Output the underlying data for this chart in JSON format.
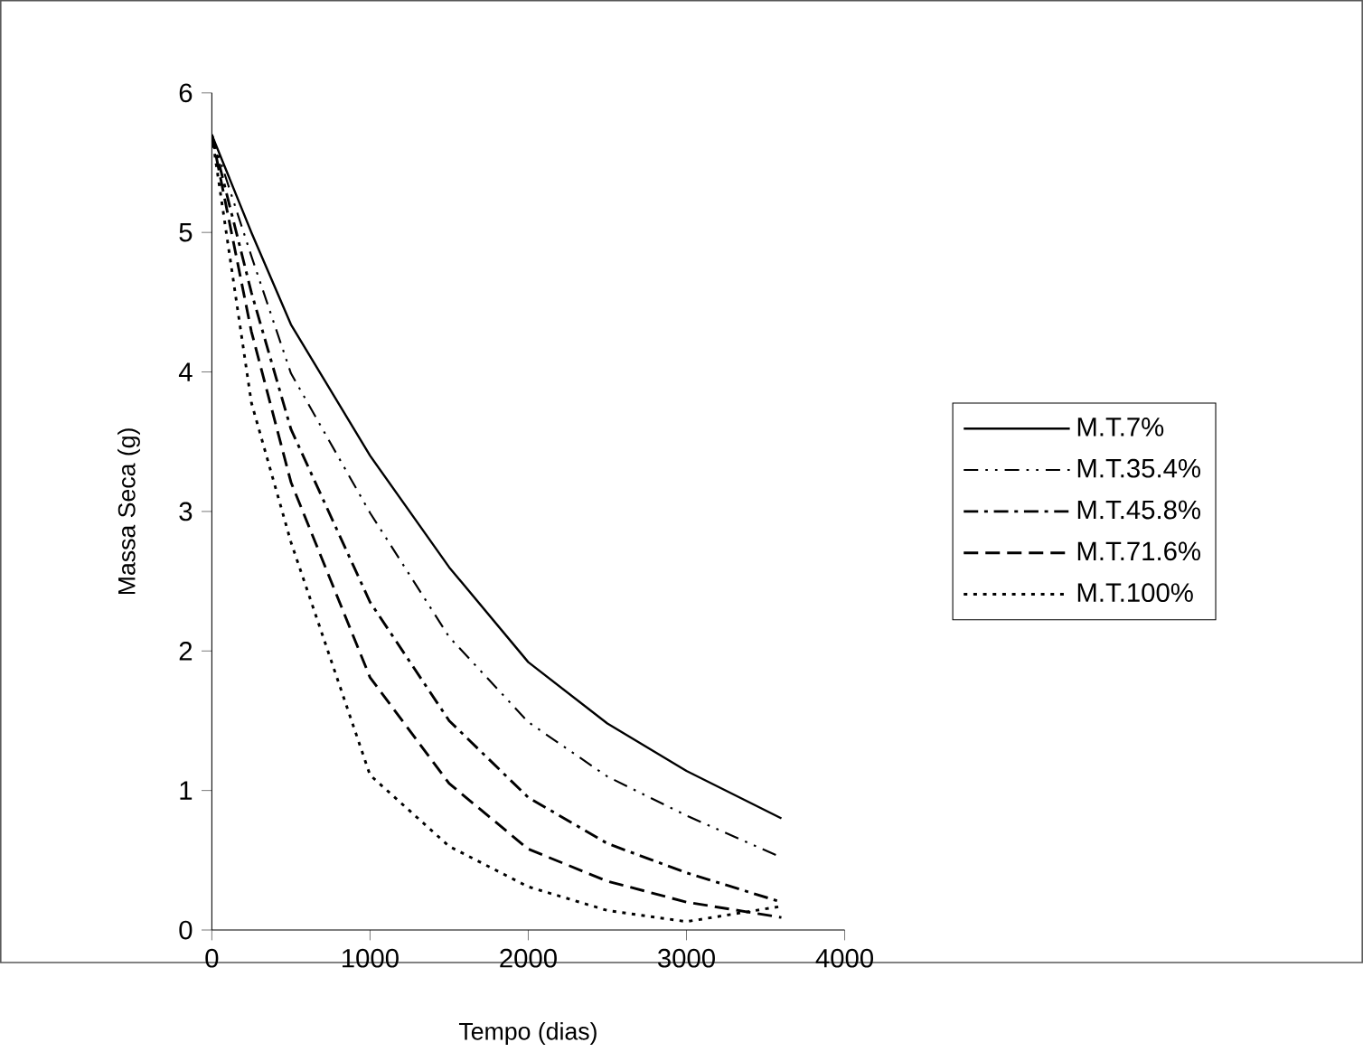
{
  "chart_data": {
    "type": "line",
    "xlabel": "Tempo (dias)",
    "ylabel": "Massa Seca (g)",
    "xlim": [
      0,
      4000
    ],
    "xticks": [
      0,
      1000,
      2000,
      3000,
      4000
    ],
    "ylim": [
      0,
      6
    ],
    "yticks": [
      0,
      1,
      2,
      3,
      4,
      5,
      6
    ],
    "x": [
      0,
      250,
      500,
      1000,
      1500,
      2000,
      2500,
      3000,
      3600
    ],
    "legend": "right",
    "grid": false,
    "marker": "none",
    "series": [
      {
        "name": "M.T.7%",
        "color": "#000000",
        "line_style": "solid",
        "values": [
          5.7,
          5.0,
          4.34,
          3.4,
          2.6,
          1.92,
          1.48,
          1.14,
          0.8
        ]
      },
      {
        "name": "M.T.35.4%",
        "color": "#000000",
        "line_style": "dashdotdot",
        "values": [
          5.7,
          4.83,
          3.99,
          2.99,
          2.1,
          1.49,
          1.1,
          0.82,
          0.52
        ]
      },
      {
        "name": "M.T.45.8%",
        "color": "#000000",
        "line_style": "dashdot",
        "values": [
          5.7,
          4.57,
          3.59,
          2.35,
          1.5,
          0.95,
          0.62,
          0.41,
          0.2
        ]
      },
      {
        "name": "M.T.71.6%",
        "color": "#000000",
        "line_style": "dashed",
        "values": [
          5.7,
          4.29,
          3.21,
          1.81,
          1.05,
          0.58,
          0.35,
          0.2,
          0.09
        ]
      },
      {
        "name": "M.T.100%",
        "color": "#000000",
        "line_style": "dotted",
        "values": [
          5.7,
          3.78,
          2.78,
          1.11,
          0.6,
          0.31,
          0.14,
          0.06,
          0.17
        ]
      }
    ]
  }
}
